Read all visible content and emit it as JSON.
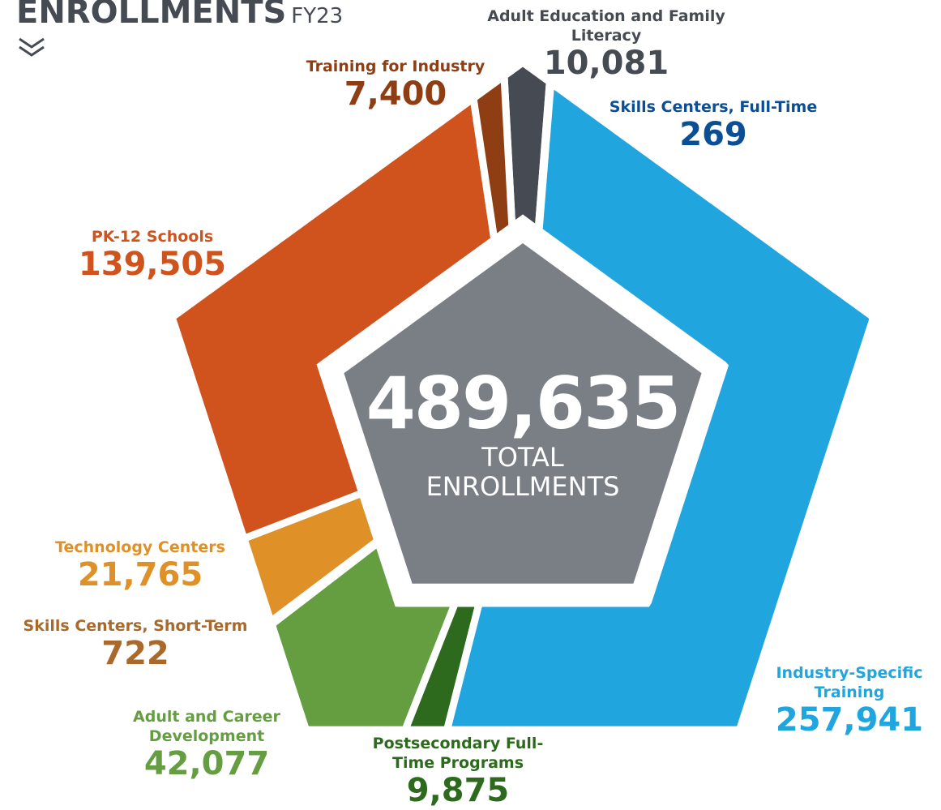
{
  "chart_data": {
    "type": "pie",
    "title": "ENROLLMENTS",
    "subtitle": "FY23",
    "categories": [
      "Adult Education and Family Literacy",
      "Skills Centers, Full-Time",
      "Industry-Specific Training",
      "Postsecondary Full-Time Programs",
      "Adult and Career Development",
      "Skills Centers, Short-Term",
      "Technology Centers",
      "PK-12 Schools",
      "Training for Industry"
    ],
    "values": [
      10081,
      269,
      257941,
      9875,
      42077,
      722,
      21765,
      139505,
      7400
    ],
    "value_labels": [
      "10,081",
      "269",
      "257,941",
      "9,875",
      "42,077",
      "722",
      "21,765",
      "139,505",
      "7,400"
    ],
    "colors": [
      "#464a53",
      "#0a4f96",
      "#21a5df",
      "#2e6a1e",
      "#659e41",
      "#a9692b",
      "#df9128",
      "#d0531e",
      "#8f3d13"
    ],
    "total": 489635,
    "total_label": "489,635",
    "center_label": "TOTAL ENROLLMENTS"
  }
}
